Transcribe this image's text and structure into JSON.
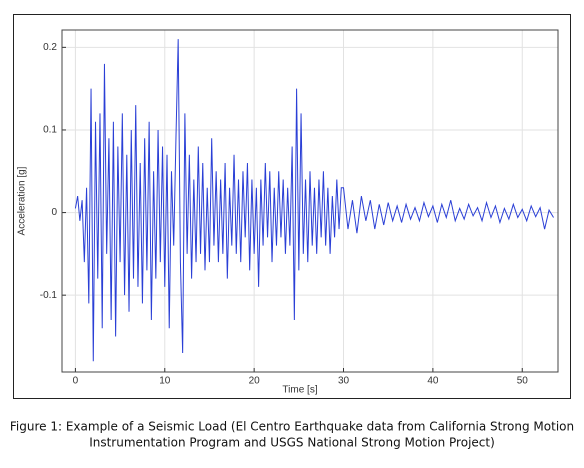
{
  "chart_data": {
    "type": "line",
    "xlabel": "Time [s]",
    "ylabel": "Acceleration [g]",
    "caption": [
      "Figure 1:  Example of a Seismic Load (El Centro Earthquake data from California Strong Motion",
      "Instrumentation Program and USGS National Strong Motion Project)"
    ],
    "color": "#2a3fd6",
    "grid": true,
    "xlim": [
      -1.5,
      54
    ],
    "xticks": [
      0,
      10,
      20,
      30,
      40,
      50
    ],
    "ylim": [
      -0.193,
      0.221
    ],
    "yticks": [
      -0.1,
      0,
      0.1,
      0.2
    ],
    "x": [
      0,
      0.25,
      0.5,
      0.75,
      1,
      1.25,
      1.5,
      1.75,
      2,
      2.25,
      2.5,
      2.75,
      3,
      3.25,
      3.5,
      3.75,
      4,
      4.25,
      4.5,
      4.75,
      5,
      5.25,
      5.5,
      5.75,
      6,
      6.25,
      6.5,
      6.75,
      7,
      7.25,
      7.5,
      7.75,
      8,
      8.25,
      8.5,
      8.75,
      9,
      9.25,
      9.5,
      9.75,
      10,
      10.25,
      10.5,
      10.75,
      11,
      11.25,
      11.5,
      11.75,
      12,
      12.25,
      12.5,
      12.75,
      13,
      13.25,
      13.5,
      13.75,
      14,
      14.25,
      14.5,
      14.75,
      15,
      15.25,
      15.5,
      15.75,
      16,
      16.25,
      16.5,
      16.75,
      17,
      17.25,
      17.5,
      17.75,
      18,
      18.25,
      18.5,
      18.75,
      19,
      19.25,
      19.5,
      19.75,
      20,
      20.25,
      20.5,
      20.75,
      21,
      21.25,
      21.5,
      21.75,
      22,
      22.25,
      22.5,
      22.75,
      23,
      23.25,
      23.5,
      23.75,
      24,
      24.25,
      24.5,
      24.75,
      25,
      25.25,
      25.5,
      25.75,
      26,
      26.25,
      26.5,
      26.75,
      27,
      27.25,
      27.5,
      27.75,
      28,
      28.25,
      28.5,
      28.75,
      29,
      29.25,
      29.5,
      29.75,
      30,
      30.5,
      31,
      31.5,
      32,
      32.5,
      33,
      33.5,
      34,
      34.5,
      35,
      35.5,
      36,
      36.5,
      37,
      37.5,
      38,
      38.5,
      39,
      39.5,
      40,
      40.5,
      41,
      41.5,
      42,
      42.5,
      43,
      43.5,
      44,
      44.5,
      45,
      45.5,
      46,
      46.5,
      47,
      47.5,
      48,
      48.5,
      49,
      49.5,
      50,
      50.5,
      51,
      51.5,
      52,
      52.5,
      53,
      53.5
    ],
    "values": [
      0.005,
      0.02,
      -0.01,
      0.015,
      -0.06,
      0.03,
      -0.11,
      0.15,
      -0.18,
      0.11,
      -0.08,
      0.12,
      -0.14,
      0.18,
      -0.05,
      0.09,
      -0.13,
      0.11,
      -0.15,
      0.08,
      -0.06,
      0.12,
      -0.1,
      0.07,
      -0.12,
      0.1,
      -0.08,
      0.13,
      -0.09,
      0.06,
      -0.11,
      0.09,
      -0.07,
      0.11,
      -0.13,
      0.05,
      -0.08,
      0.1,
      -0.06,
      0.08,
      -0.09,
      0.07,
      -0.14,
      0.05,
      -0.04,
      0.09,
      0.21,
      -0.06,
      -0.17,
      0.12,
      -0.05,
      0.07,
      -0.08,
      0.04,
      -0.06,
      0.08,
      -0.05,
      0.06,
      -0.07,
      0.03,
      -0.06,
      0.09,
      -0.04,
      0.05,
      -0.06,
      0.04,
      -0.05,
      0.06,
      -0.08,
      0.03,
      -0.04,
      0.07,
      -0.05,
      0.04,
      -0.06,
      0.05,
      -0.03,
      0.06,
      -0.07,
      0.04,
      -0.05,
      0.03,
      -0.09,
      0.04,
      -0.04,
      0.06,
      -0.03,
      0.05,
      -0.06,
      0.03,
      -0.04,
      0.05,
      -0.03,
      0.04,
      -0.05,
      0.03,
      -0.04,
      0.08,
      -0.13,
      0.15,
      -0.07,
      0.12,
      -0.05,
      0.04,
      -0.06,
      0.05,
      -0.04,
      0.03,
      -0.05,
      0.04,
      -0.03,
      0.05,
      -0.04,
      0.03,
      -0.05,
      0.02,
      -0.03,
      0.04,
      -0.02,
      0.03,
      0.03,
      -0.02,
      0.015,
      -0.025,
      0.02,
      -0.01,
      0.015,
      -0.02,
      0.01,
      -0.015,
      0.012,
      -0.01,
      0.008,
      -0.012,
      0.01,
      -0.008,
      0.006,
      -0.01,
      0.012,
      -0.005,
      0.008,
      -0.012,
      0.01,
      -0.006,
      0.015,
      -0.01,
      0.005,
      -0.008,
      0.01,
      -0.004,
      0.006,
      -0.01,
      0.012,
      -0.006,
      0.008,
      -0.012,
      0.005,
      -0.008,
      0.01,
      -0.006,
      0.004,
      -0.01,
      0.008,
      -0.005,
      0.006,
      -0.02,
      0.003,
      -0.006
    ]
  }
}
